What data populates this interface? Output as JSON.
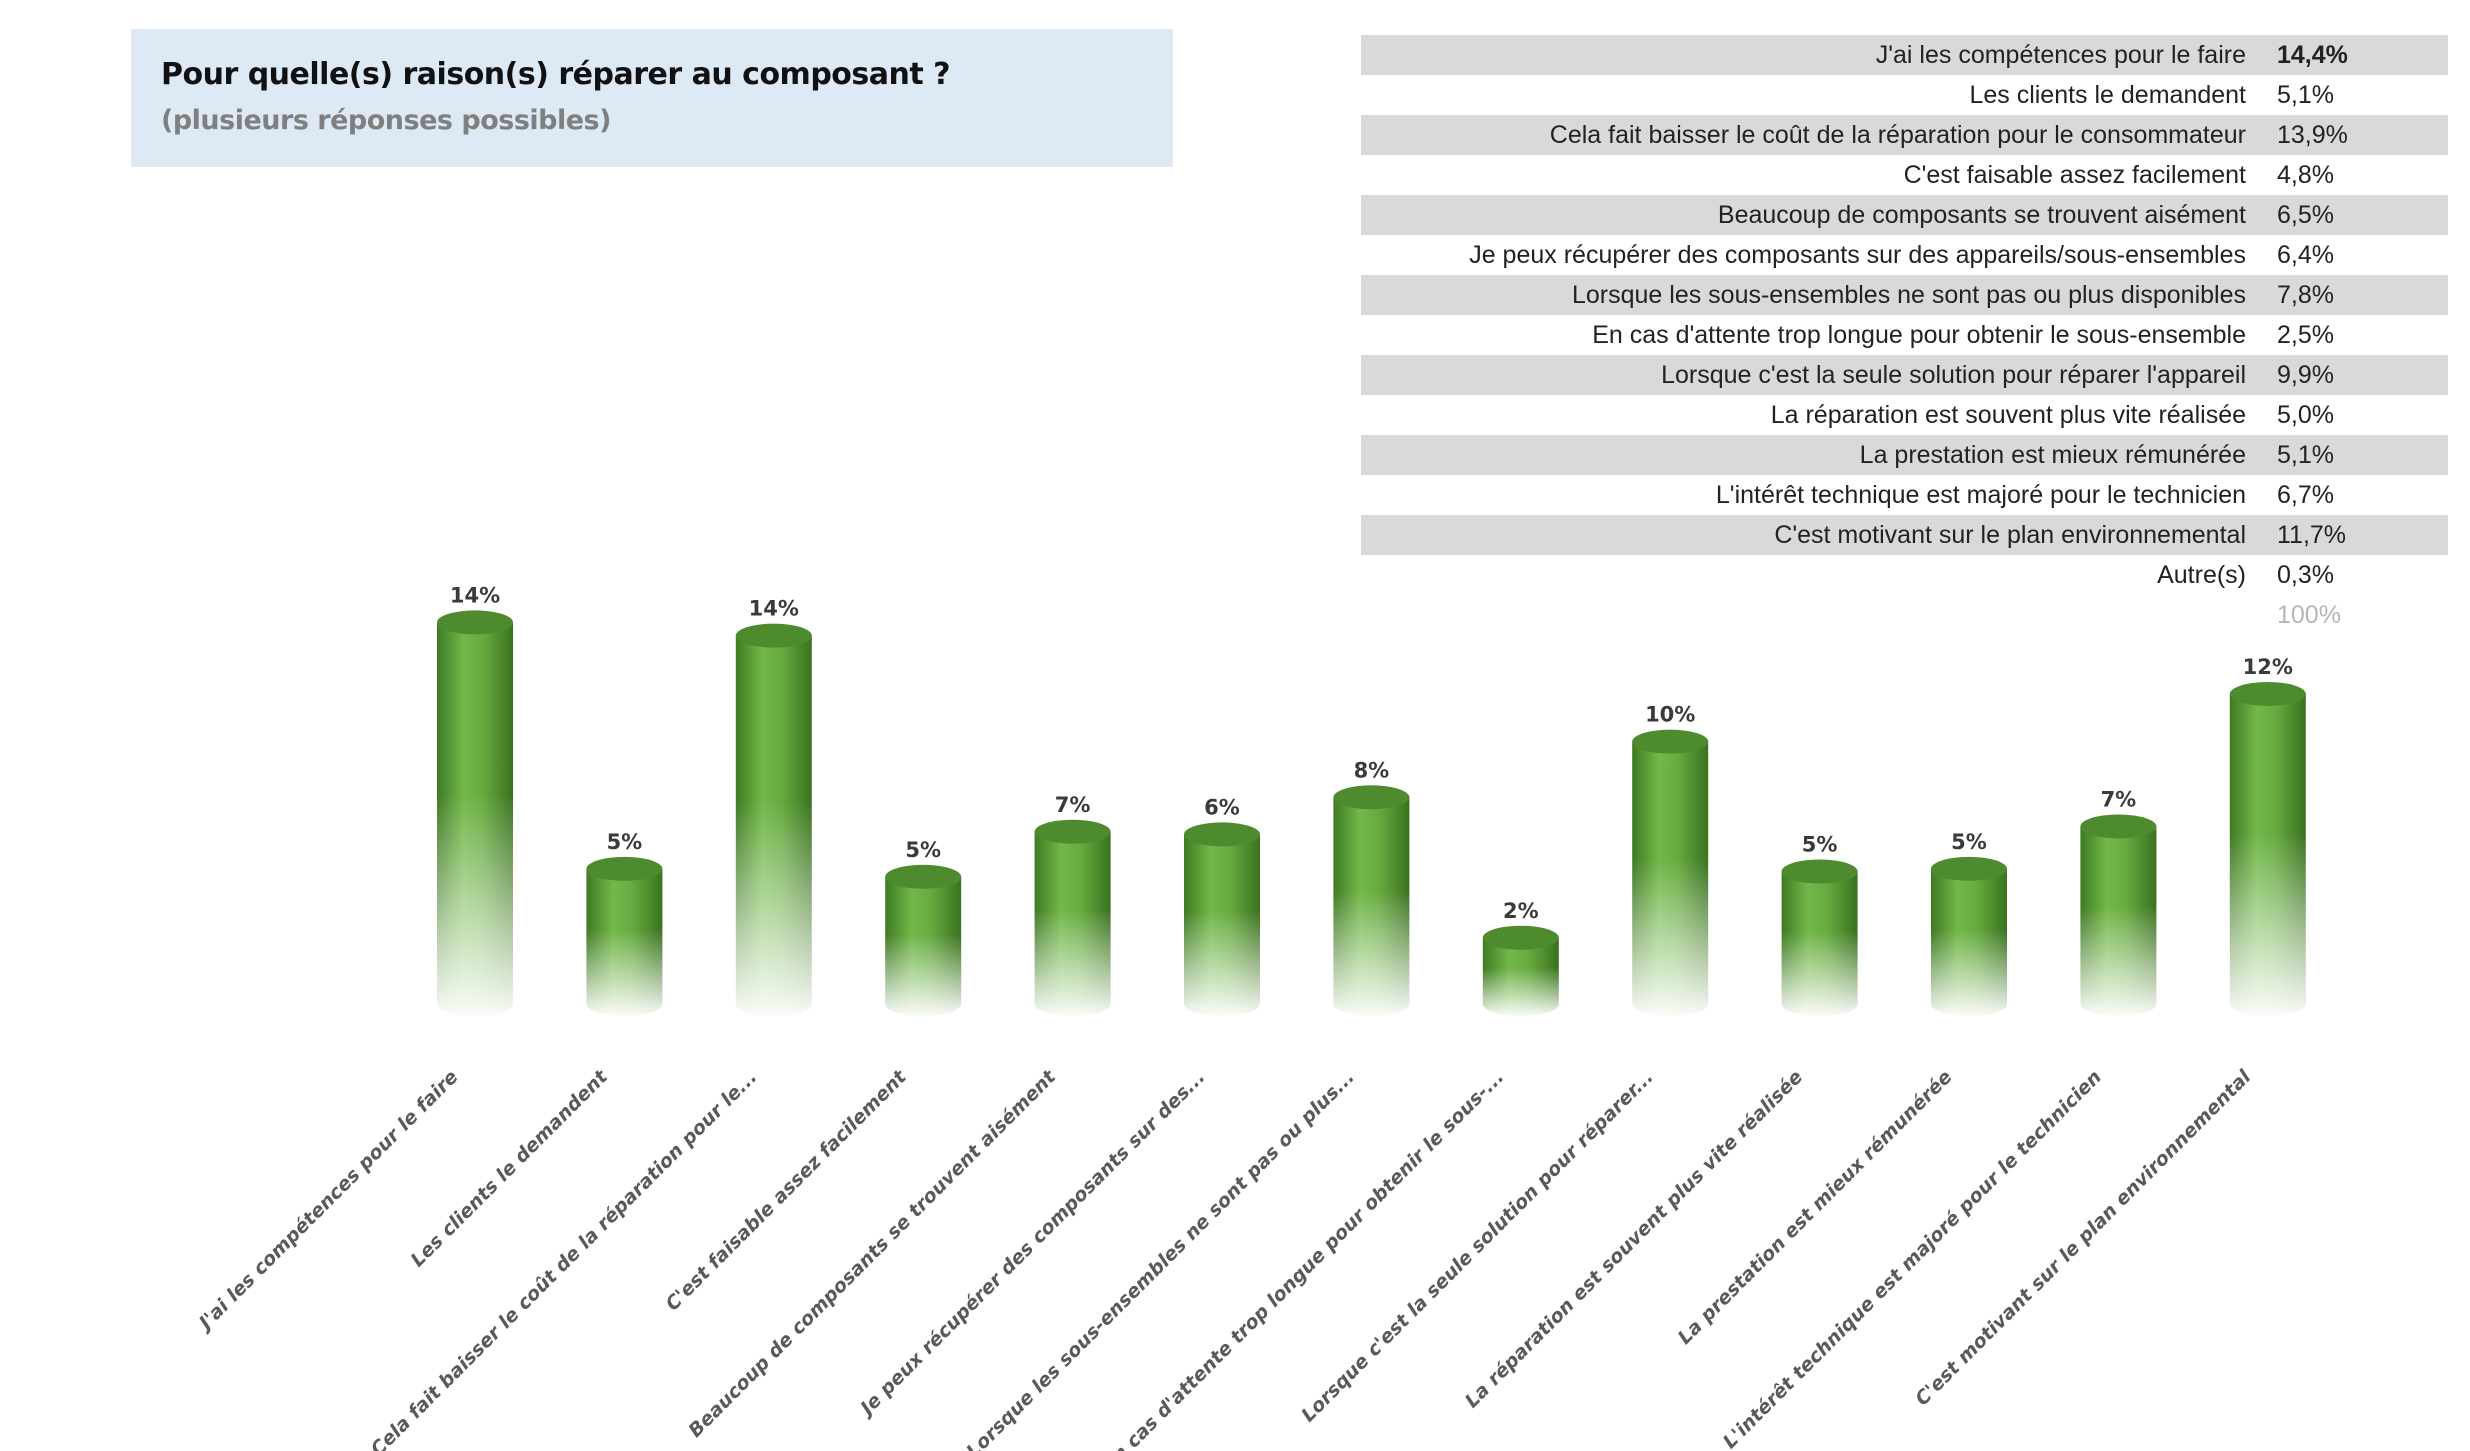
{
  "header": {
    "title": "Pour quelle(s) raison(s) réparer au composant ?",
    "subtitle": "(plusieurs réponses possibles)"
  },
  "table": {
    "rows": [
      {
        "label": "J'ai les compétences pour le faire",
        "value": "14,4%"
      },
      {
        "label": "Les clients le demandent",
        "value": "5,1%"
      },
      {
        "label": "Cela fait baisser le coût de la réparation pour le consommateur",
        "value": "13,9%"
      },
      {
        "label": "C'est faisable assez facilement",
        "value": "4,8%"
      },
      {
        "label": "Beaucoup de composants se trouvent aisément",
        "value": "6,5%"
      },
      {
        "label": "Je peux récupérer des composants sur des appareils/sous-ensembles",
        "value": "6,4%"
      },
      {
        "label": "Lorsque les sous-ensembles ne sont pas ou plus disponibles",
        "value": "7,8%"
      },
      {
        "label": "En cas d'attente trop longue pour obtenir le sous-ensemble",
        "value": "2,5%"
      },
      {
        "label": "Lorsque c'est la seule solution pour réparer l'appareil",
        "value": "9,9%"
      },
      {
        "label": "La réparation est souvent plus vite réalisée",
        "value": "5,0%"
      },
      {
        "label": "La prestation est mieux rémunérée",
        "value": "5,1%"
      },
      {
        "label": "L'intérêt technique est majoré pour le technicien",
        "value": "6,7%"
      },
      {
        "label": "C'est motivant sur le plan environnemental",
        "value": "11,7%"
      },
      {
        "label": "Autre(s)",
        "value": "0,3%"
      }
    ],
    "total": "100%"
  },
  "chart_data": {
    "type": "bar",
    "style": "3d-cylinder, green fading to white at the base",
    "color": "#5fa43a",
    "categories": [
      "J'ai les compétences pour le faire",
      "Les clients le demandent",
      "Cela fait baisser le coût de la réparation pour le...",
      "C'est faisable assez facilement",
      "Beaucoup de composants se trouvent aisément",
      "Je peux récupérer des composants sur des...",
      "Lorsque les sous-ensembles ne sont pas ou plus...",
      "En cas d'attente trop longue pour obtenir le sous-...",
      "Lorsque c'est la seule solution pour réparer...",
      "La réparation est souvent plus vite réalisée",
      "La prestation est mieux rémunérée",
      "L'intérêt technique est majoré pour le technicien",
      "C'est motivant sur le plan environnemental"
    ],
    "values": [
      14.4,
      5.1,
      13.9,
      4.8,
      6.5,
      6.4,
      7.8,
      2.5,
      9.9,
      5.0,
      5.1,
      6.7,
      11.7
    ],
    "data_labels": [
      "14%",
      "5%",
      "14%",
      "5%",
      "7%",
      "6%",
      "8%",
      "2%",
      "10%",
      "5%",
      "5%",
      "7%",
      "12%"
    ],
    "ylim": [
      0,
      15
    ],
    "grid": false,
    "y_axis_visible": false
  }
}
